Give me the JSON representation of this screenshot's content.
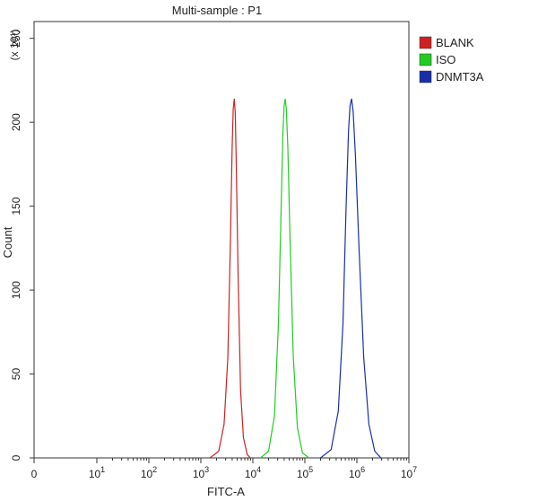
{
  "chart_data": {
    "type": "line",
    "title": "Multi-sample : P1",
    "xlabel": "FITC-A",
    "ylabel": "Count",
    "y_multiplier_label": "(x 10¹)",
    "x_scale": "log",
    "xlim": [
      0,
      10000000
    ],
    "ylim": [
      0,
      260
    ],
    "y_ticks": [
      0,
      50,
      100,
      150,
      200,
      250
    ],
    "x_ticks": [
      {
        "value": 0,
        "base": "0",
        "exp": ""
      },
      {
        "value": 10,
        "base": "10",
        "exp": "1"
      },
      {
        "value": 100,
        "base": "10",
        "exp": "2"
      },
      {
        "value": 1000,
        "base": "10",
        "exp": "3"
      },
      {
        "value": 10000,
        "base": "10",
        "exp": "4"
      },
      {
        "value": 100000,
        "base": "10",
        "exp": "5"
      },
      {
        "value": 1000000,
        "base": "10",
        "exp": "6"
      },
      {
        "value": 10000000,
        "base": "10",
        "exp": "7"
      }
    ],
    "legend_position": "top-right",
    "grid": false,
    "series": [
      {
        "name": "BLANK",
        "color": "#cc2222",
        "x": [
          1500,
          2200,
          2800,
          3300,
          3700,
          4000,
          4200,
          4400,
          4600,
          4800,
          5200,
          5800,
          6600,
          7800,
          9000
        ],
        "y": [
          0,
          4,
          20,
          60,
          130,
          185,
          208,
          214,
          205,
          175,
          110,
          40,
          12,
          2,
          0
        ]
      },
      {
        "name": "ISO",
        "color": "#22cc22",
        "x": [
          14000,
          20000,
          26000,
          31000,
          35000,
          38000,
          40000,
          42000,
          44000,
          47000,
          52000,
          60000,
          72000,
          90000,
          120000
        ],
        "y": [
          0,
          4,
          25,
          80,
          150,
          195,
          210,
          214,
          208,
          185,
          130,
          60,
          18,
          3,
          0
        ]
      },
      {
        "name": "DNMT3A",
        "color": "#1a2eaa",
        "x": [
          200000,
          320000,
          440000,
          540000,
          620000,
          690000,
          740000,
          790000,
          850000,
          940000,
          1100000,
          1350000,
          1700000,
          2200000,
          2900000
        ],
        "y": [
          0,
          5,
          28,
          80,
          150,
          195,
          210,
          214,
          206,
          180,
          125,
          60,
          20,
          4,
          0
        ]
      }
    ]
  }
}
